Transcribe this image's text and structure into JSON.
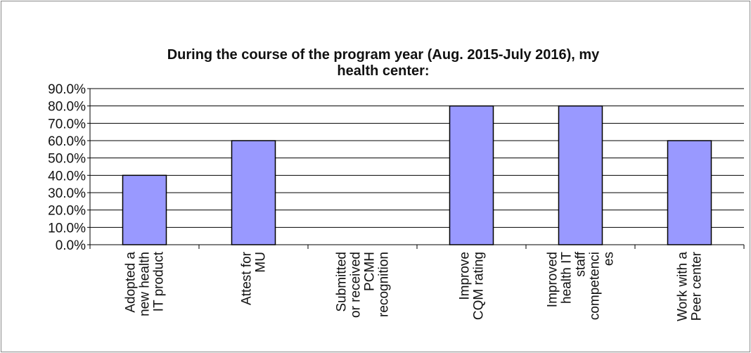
{
  "chart_data": {
    "type": "bar",
    "title": "During the course of the program year (Aug. 2015-July 2016), my\nhealth center:",
    "categories": [
      "Adopted a\nnew health\nIT product",
      "Attest for\nMU",
      "Submitted\nor received\nPCMH\nrecognition",
      "Improve\nCQM rating",
      "Improved\nhealth IT\nstaff\ncompetenci\nes",
      "Work with a\nPeer center"
    ],
    "values": [
      40,
      60,
      0,
      80,
      80,
      60
    ],
    "color": "#9999ff",
    "ylim": [
      0,
      90
    ],
    "yticks": [
      {
        "value": 0,
        "label": "0.0%"
      },
      {
        "value": 10,
        "label": "10.0%"
      },
      {
        "value": 20,
        "label": "20.0%"
      },
      {
        "value": 30,
        "label": "30.0%"
      },
      {
        "value": 40,
        "label": "40.0%"
      },
      {
        "value": 50,
        "label": "50.0%"
      },
      {
        "value": 60,
        "label": "60.0%"
      },
      {
        "value": 70,
        "label": "70.0%"
      },
      {
        "value": 80,
        "label": "80.0%"
      },
      {
        "value": 90,
        "label": "90.0%"
      }
    ],
    "grid": true
  }
}
